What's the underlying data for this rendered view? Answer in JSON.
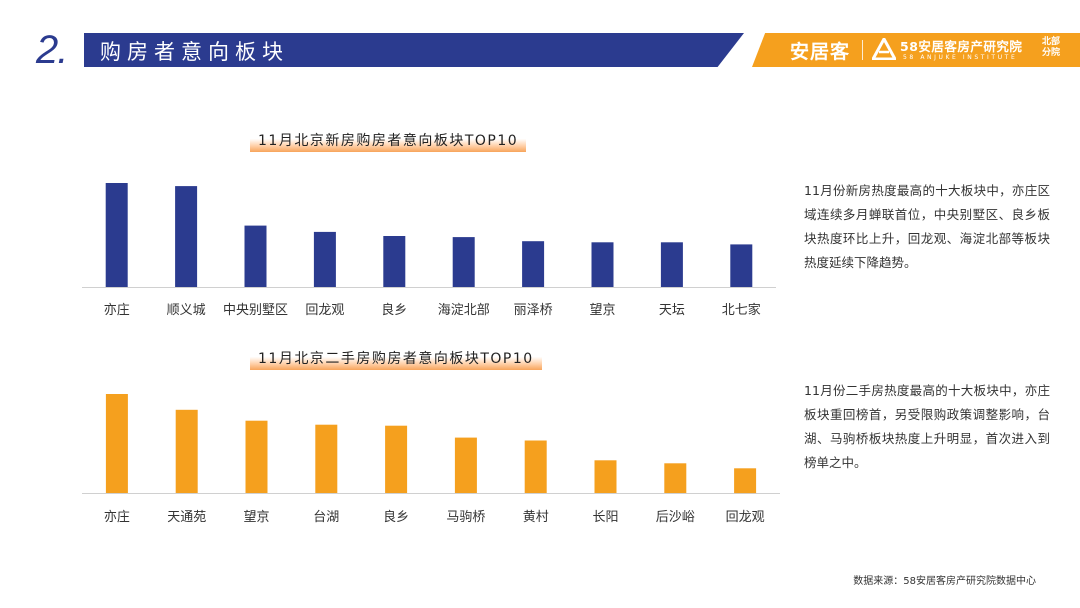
{
  "header": {
    "number": "2.",
    "title": "购房者意向板块"
  },
  "logo": {
    "brand": "安居客",
    "institute": "58安居客房产研究院",
    "institute_en": "58 ANJUKE INSTITUTE",
    "branch": "北部分院"
  },
  "colors": {
    "navy": "#2b3b8f",
    "orange": "#f5a01e"
  },
  "chart_data": [
    {
      "type": "bar",
      "title": "11月北京新房购房者意向板块TOP10",
      "categories": [
        "亦庄",
        "顺义城",
        "中央别墅区",
        "回龙观",
        "良乡",
        "海淀北部",
        "丽泽桥",
        "望京",
        "天坛",
        "北七家"
      ],
      "values": [
        100,
        97,
        59,
        53,
        49,
        48,
        44,
        43,
        43,
        41
      ],
      "ylim": [
        0,
        100
      ],
      "color": "#2b3b8f",
      "grid": false,
      "yaxis_visible": false
    },
    {
      "type": "bar",
      "title": "11月北京二手房购房者意向板块TOP10",
      "categories": [
        "亦庄",
        "天通苑",
        "望京",
        "台湖",
        "良乡",
        "马驹桥",
        "黄村",
        "长阳",
        "后沙峪",
        "回龙观"
      ],
      "values": [
        100,
        84,
        73,
        69,
        68,
        56,
        53,
        33,
        30,
        25
      ],
      "ylim": [
        0,
        100
      ],
      "color": "#f5a01e",
      "grid": false,
      "yaxis_visible": false
    }
  ],
  "descriptions": [
    "11月份新房热度最高的十大板块中，亦庄区域连续多月蝉联首位，中央别墅区、良乡板块热度环比上升，回龙观、海淀北部等板块热度延续下降趋势。",
    "11月份二手房热度最高的十大板块中，亦庄板块重回榜首，另受限购政策调整影响，台湖、马驹桥板块热度上升明显，首次进入到榜单之中。"
  ],
  "source": "数据来源：58安居客房产研究院数据中心"
}
